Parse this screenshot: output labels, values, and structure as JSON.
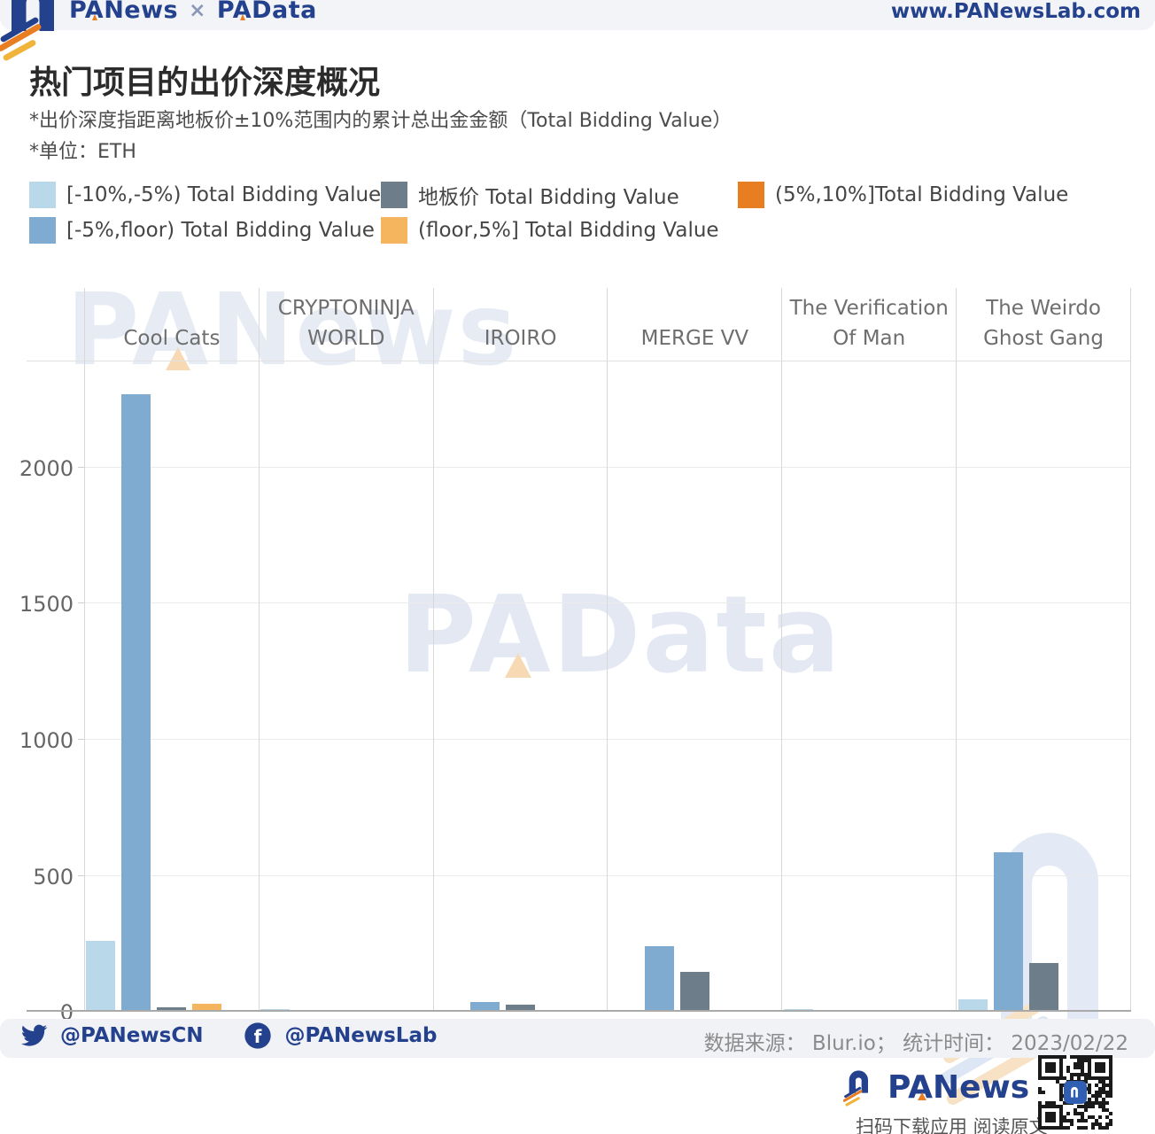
{
  "header": {
    "brand_left": "PANews",
    "brand_sep": "×",
    "brand_right": "PAData",
    "website": "www.PANewsLab.com"
  },
  "title": "热门项目的出价深度概况",
  "subtitle": "*出价深度指距离地板价±10%范围内的累计总出金金额（Total Bidding Value）",
  "unit_note": "*单位：ETH",
  "chart_data": {
    "type": "bar",
    "title": "热门项目的出价深度概况",
    "unit": "ETH",
    "categories": [
      "Cool Cats",
      "CRYPTONINJA WORLD",
      "IROIRO",
      "MERGE VV",
      "The Verification Of Man",
      "The Weirdo Ghost Gang"
    ],
    "series": [
      {
        "name": "[-10%,-5%) Total Bidding Value",
        "color": "#b9d8ea",
        "values": [
          260,
          10,
          0,
          0,
          10,
          45
        ]
      },
      {
        "name": "[-5%,floor) Total Bidding Value",
        "color": "#7fabd1",
        "values": [
          2270,
          0,
          35,
          240,
          0,
          585
        ]
      },
      {
        "name": "地板价 Total Bidding Value",
        "color": "#6d7d89",
        "values": [
          15,
          0,
          25,
          145,
          0,
          180
        ]
      },
      {
        "name": "(floor,5%] Total Bidding Value",
        "color": "#f5b55e",
        "values": [
          30,
          0,
          0,
          0,
          0,
          0
        ]
      },
      {
        "name": "(5%,10%]Total Bidding Value",
        "color": "#e87d22",
        "values": [
          0,
          0,
          0,
          0,
          0,
          0
        ]
      }
    ],
    "yticks": [
      0,
      500,
      1000,
      1500,
      2000
    ],
    "ylim": [
      0,
      2394
    ],
    "grid": true,
    "legend_position": "top"
  },
  "watermarks": {
    "top": "PANews",
    "middle": "PAData"
  },
  "footer": {
    "twitter_handle": "@PANewsCN",
    "facebook_handle": "@PANewsLab",
    "source_line": "数据来源： Blur.io； 统计时间： 2023/02/22",
    "brand": "PANews",
    "tagline": "扫码下载应用 阅读原文"
  },
  "colors": {
    "brand_navy": "#24418e",
    "brand_orange": "#e87d22",
    "brand_yellow": "#f0b43a",
    "bar_light_blue": "#b9d8ea",
    "bar_blue": "#7fabd1",
    "bar_gray": "#6d7d89",
    "bar_light_orange": "#f5b55e",
    "bar_dark_orange": "#e87d22"
  }
}
